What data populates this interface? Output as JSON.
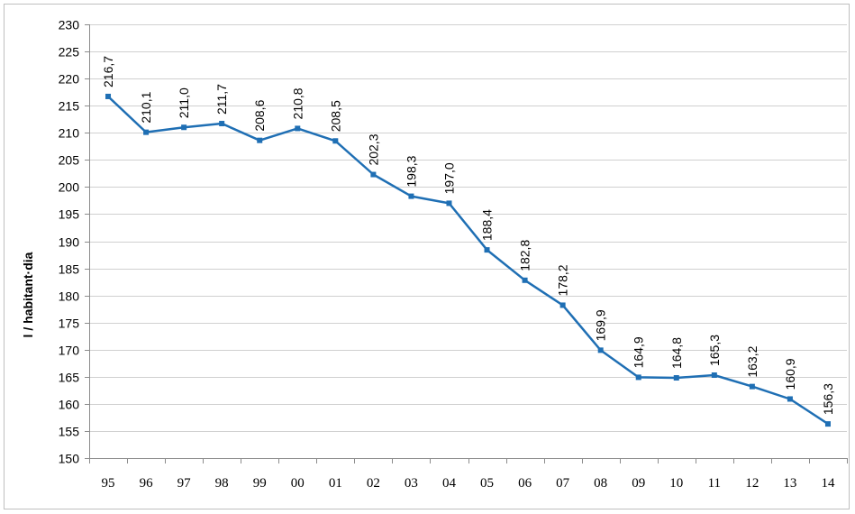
{
  "chart_data": {
    "type": "line",
    "title": "",
    "xlabel": "",
    "ylabel": "l / habitant·dia",
    "ylim": [
      150,
      230
    ],
    "ystep": 5,
    "grid": true,
    "legend": "none",
    "categories": [
      "95",
      "96",
      "97",
      "98",
      "99",
      "00",
      "01",
      "02",
      "03",
      "04",
      "05",
      "06",
      "07",
      "08",
      "09",
      "10",
      "11",
      "12",
      "13",
      "14"
    ],
    "series": [
      {
        "values": [
          216.7,
          210.1,
          211.0,
          211.7,
          208.6,
          210.8,
          208.5,
          202.3,
          198.3,
          197.0,
          188.4,
          182.8,
          178.2,
          169.9,
          164.9,
          164.8,
          165.3,
          163.2,
          160.9,
          156.3
        ],
        "labels": [
          "216,7",
          "210,1",
          "211,0",
          "211,7",
          "208,6",
          "210,8",
          "208,5",
          "202,3",
          "198,3",
          "197,0",
          "188,4",
          "182,8",
          "178,2",
          "169,9",
          "164,9",
          "164,8",
          "165,3",
          "163,2",
          "160,9",
          "156,3"
        ],
        "color": "#1f6fb4"
      }
    ]
  }
}
